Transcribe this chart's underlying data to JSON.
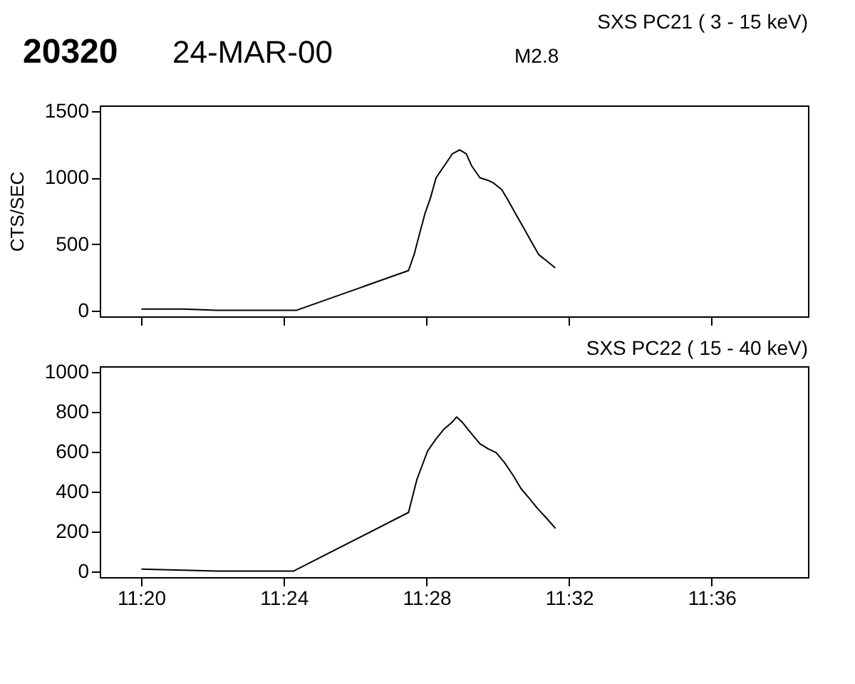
{
  "chart_data": [
    {
      "type": "line",
      "title": "SXS PC21  (  3 - 15 keV)",
      "ylabel": "CTS/SEC",
      "annotations": [
        "20320",
        "24-MAR-00",
        "M2.8"
      ],
      "x": [
        11.3335,
        11.3532,
        11.3686,
        11.4058,
        11.4583,
        11.4609,
        11.4635,
        11.466,
        11.4686,
        11.4712,
        11.475,
        11.4788,
        11.4822,
        11.4853,
        11.4878,
        11.4917,
        11.4955,
        11.4981,
        11.5019,
        11.5045,
        11.5083,
        11.5122,
        11.516,
        11.5192,
        11.5231,
        11.5269
      ],
      "series": [
        {
          "color": "#000000",
          "values": [
            10,
            10,
            0,
            0,
            300,
            420,
            580,
            730,
            850,
            1000,
            1090,
            1180,
            1210,
            1180,
            1090,
            1000,
            980,
            960,
            910,
            840,
            730,
            620,
            510,
            420,
            370,
            320
          ]
        }
      ],
      "xlim": [
        11.314,
        11.645
      ],
      "xticks": [
        {
          "value": 11.3333,
          "label": null
        },
        {
          "value": 11.4,
          "label": null
        },
        {
          "value": 11.4667,
          "label": null
        },
        {
          "value": 11.5333,
          "label": null
        },
        {
          "value": 11.6,
          "label": null
        }
      ],
      "ylim": [
        -45,
        1545
      ],
      "yticks": [
        0,
        500,
        1000,
        1500
      ],
      "tick_labels": "y",
      "grid": false,
      "legend": false,
      "marker": "none",
      "line_style": "solid"
    },
    {
      "type": "line",
      "title": "SXS PC22  ( 15 - 40 keV)",
      "x": [
        11.3335,
        11.3532,
        11.3686,
        11.4045,
        11.4583,
        11.4622,
        11.4648,
        11.4673,
        11.4712,
        11.475,
        11.4788,
        11.4808,
        11.4833,
        11.4878,
        11.4917,
        11.4955,
        11.4993,
        11.5032,
        11.507,
        11.5109,
        11.5148,
        11.5186,
        11.5225,
        11.527
      ],
      "series": [
        {
          "color": "#000000",
          "values": [
            10,
            5,
            0,
            0,
            295,
            460,
            535,
            605,
            665,
            715,
            750,
            775,
            750,
            690,
            640,
            615,
            595,
            545,
            485,
            415,
            365,
            315,
            270,
            215
          ]
        }
      ],
      "xlim": [
        11.314,
        11.645
      ],
      "xticks": [
        {
          "value": 11.3333,
          "label": "11:20"
        },
        {
          "value": 11.4,
          "label": "11:24"
        },
        {
          "value": 11.4667,
          "label": "11:28"
        },
        {
          "value": 11.5333,
          "label": "11:32"
        },
        {
          "value": 11.6,
          "label": "11:36"
        }
      ],
      "ylim": [
        -30,
        1030
      ],
      "yticks": [
        0,
        200,
        400,
        600,
        800,
        1000
      ],
      "grid": false,
      "legend": false,
      "marker": "none",
      "line_style": "solid"
    }
  ]
}
